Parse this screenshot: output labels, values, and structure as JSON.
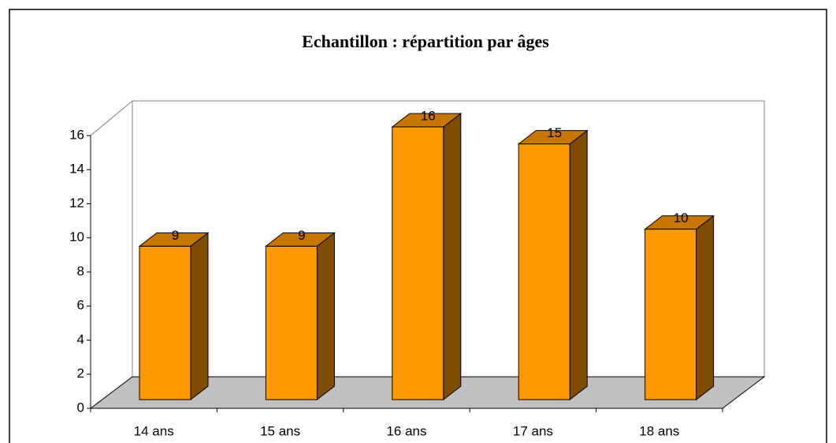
{
  "chart_data": {
    "type": "bar",
    "title": "Echantillon : répartition par âges",
    "categories": [
      "14 ans",
      "15 ans",
      "16 ans",
      "17 ans",
      "18 ans"
    ],
    "values": [
      9,
      9,
      16,
      15,
      10
    ],
    "color": "#ff9900",
    "ylim": [
      0,
      16
    ],
    "yticks": [
      0,
      2,
      4,
      6,
      8,
      10,
      12,
      14,
      16
    ],
    "grid": false
  }
}
